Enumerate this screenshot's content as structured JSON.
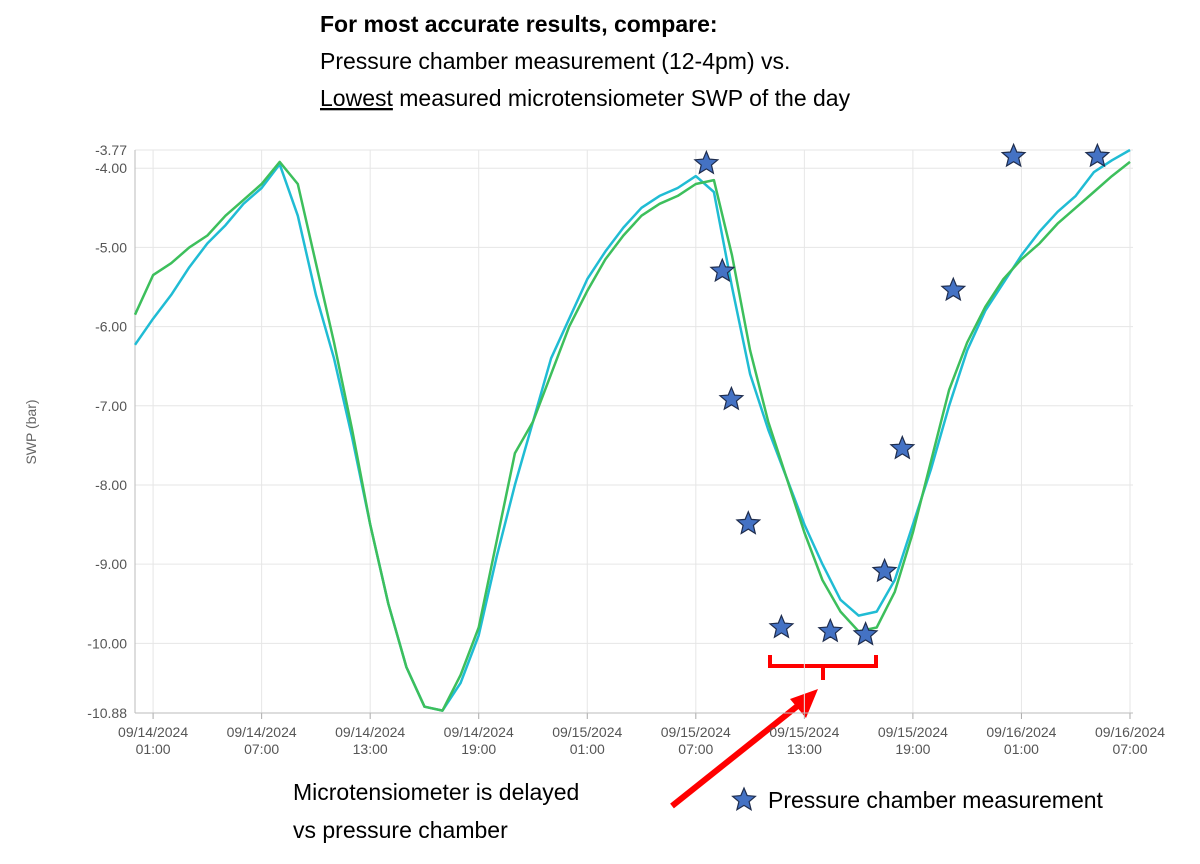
{
  "chart_data": {
    "type": "line",
    "title": "For most accurate results, compare:",
    "subtitle": "Pressure chamber measurement (12-4pm) vs.",
    "subtitle2": [
      "Lowest",
      "measured microtensiometer SWP of the day"
    ],
    "ylabel": "SWP (bar)",
    "annotation": [
      "Microtensiometer is delayed",
      "vs pressure chamber"
    ],
    "grid": true,
    "xlim": [
      "2024-09-14T00:00",
      "2024-09-16T07:10"
    ],
    "xticks": [
      {
        "value": "2024-09-14T01:00",
        "label": "09/14/2024 01:00"
      },
      {
        "value": "2024-09-14T07:00",
        "label": "09/14/2024 07:00"
      },
      {
        "value": "2024-09-14T13:00",
        "label": "09/14/2024 13:00"
      },
      {
        "value": "2024-09-14T19:00",
        "label": "09/14/2024 19:00"
      },
      {
        "value": "2024-09-15T01:00",
        "label": "09/15/2024 01:00"
      },
      {
        "value": "2024-09-15T07:00",
        "label": "09/15/2024 07:00"
      },
      {
        "value": "2024-09-15T13:00",
        "label": "09/15/2024 13:00"
      },
      {
        "value": "2024-09-15T19:00",
        "label": "09/15/2024 19:00"
      },
      {
        "value": "2024-09-16T01:00",
        "label": "09/16/2024 01:00"
      },
      {
        "value": "2024-09-16T07:00",
        "label": "09/16/2024 07:00"
      }
    ],
    "ylim": [
      -10.88,
      -3.77
    ],
    "yticks": [
      -3.77,
      {
        "value": -4,
        "label": "-4.00"
      },
      {
        "value": -5,
        "label": "-5.00"
      },
      {
        "value": -6,
        "label": "-6.00"
      },
      {
        "value": -7,
        "label": "-7.00"
      },
      {
        "value": -8,
        "label": "-8.00"
      },
      {
        "value": -9,
        "label": "-9.00"
      },
      {
        "value": -10,
        "label": "-10.00"
      },
      -10.88
    ],
    "x": [
      "2024-09-14T00:00",
      "2024-09-14T01:00",
      "2024-09-14T02:00",
      "2024-09-14T03:00",
      "2024-09-14T04:00",
      "2024-09-14T05:00",
      "2024-09-14T06:00",
      "2024-09-14T07:00",
      "2024-09-14T08:00",
      "2024-09-14T09:00",
      "2024-09-14T10:00",
      "2024-09-14T11:00",
      "2024-09-14T12:00",
      "2024-09-14T13:00",
      "2024-09-14T14:00",
      "2024-09-14T15:00",
      "2024-09-14T16:00",
      "2024-09-14T17:00",
      "2024-09-14T18:00",
      "2024-09-14T19:00",
      "2024-09-14T20:00",
      "2024-09-14T21:00",
      "2024-09-14T22:00",
      "2024-09-14T23:00",
      "2024-09-15T00:00",
      "2024-09-15T01:00",
      "2024-09-15T02:00",
      "2024-09-15T03:00",
      "2024-09-15T04:00",
      "2024-09-15T05:00",
      "2024-09-15T06:00",
      "2024-09-15T07:00",
      "2024-09-15T08:00",
      "2024-09-15T09:00",
      "2024-09-15T10:00",
      "2024-09-15T11:00",
      "2024-09-15T12:00",
      "2024-09-15T13:00",
      "2024-09-15T14:00",
      "2024-09-15T15:00",
      "2024-09-15T16:00",
      "2024-09-15T17:00",
      "2024-09-15T18:00",
      "2024-09-15T19:00",
      "2024-09-15T20:00",
      "2024-09-15T21:00",
      "2024-09-15T22:00",
      "2024-09-15T23:00",
      "2024-09-16T00:00",
      "2024-09-16T01:00",
      "2024-09-16T02:00",
      "2024-09-16T03:00",
      "2024-09-16T04:00",
      "2024-09-16T05:00",
      "2024-09-16T06:00",
      "2024-09-16T07:00"
    ],
    "series": [
      {
        "color": "#20bcd4",
        "values": [
          -6.23,
          -5.9,
          -5.6,
          -5.25,
          -4.95,
          -4.72,
          -4.45,
          -4.25,
          -3.95,
          -4.6,
          -5.6,
          -6.4,
          -7.4,
          -8.5,
          -9.5,
          -10.3,
          -10.8,
          -10.85,
          -10.5,
          -9.9,
          -8.9,
          -8.0,
          -7.2,
          -6.4,
          -5.9,
          -5.4,
          -5.05,
          -4.75,
          -4.5,
          -4.35,
          -4.25,
          -4.1,
          -4.3,
          -5.5,
          -6.6,
          -7.3,
          -7.9,
          -8.5,
          -9.0,
          -9.45,
          -9.65,
          -9.6,
          -9.2,
          -8.5,
          -7.8,
          -7.0,
          -6.3,
          -5.8,
          -5.45,
          -5.1,
          -4.8,
          -4.55,
          -4.35,
          -4.05,
          -3.9,
          -3.77
        ]
      },
      {
        "color": "#3dbf5c",
        "values": [
          -5.85,
          -5.35,
          -5.2,
          -5.0,
          -4.85,
          -4.6,
          -4.4,
          -4.2,
          -3.92,
          -4.2,
          -5.2,
          -6.2,
          -7.3,
          -8.5,
          -9.5,
          -10.3,
          -10.8,
          -10.85,
          -10.4,
          -9.8,
          -8.7,
          -7.6,
          -7.2,
          -6.6,
          -6.0,
          -5.55,
          -5.15,
          -4.85,
          -4.6,
          -4.45,
          -4.35,
          -4.2,
          -4.15,
          -5.1,
          -6.3,
          -7.2,
          -7.9,
          -8.6,
          -9.2,
          -9.6,
          -9.85,
          -9.8,
          -9.35,
          -8.6,
          -7.7,
          -6.8,
          -6.2,
          -5.75,
          -5.4,
          -5.15,
          -4.95,
          -4.7,
          -4.5,
          -4.3,
          -4.1,
          -3.92
        ]
      },
      {
        "name": "Pressure chamber measurement",
        "type": "scatter",
        "marker": "star",
        "color": "#4472c4",
        "x": [
          "2024-09-15T07:35",
          "2024-09-15T08:28",
          "2024-09-15T08:58",
          "2024-09-15T09:54",
          "2024-09-15T11:44",
          "2024-09-15T14:26",
          "2024-09-15T16:23",
          "2024-09-15T17:26",
          "2024-09-15T18:25",
          "2024-09-15T21:14",
          "2024-09-16T00:34",
          "2024-09-16T05:12"
        ],
        "values": [
          -3.94,
          -5.3,
          -6.92,
          -8.49,
          -9.8,
          -9.85,
          -9.89,
          -9.09,
          -7.54,
          -5.54,
          -3.85,
          -3.85
        ]
      }
    ]
  }
}
